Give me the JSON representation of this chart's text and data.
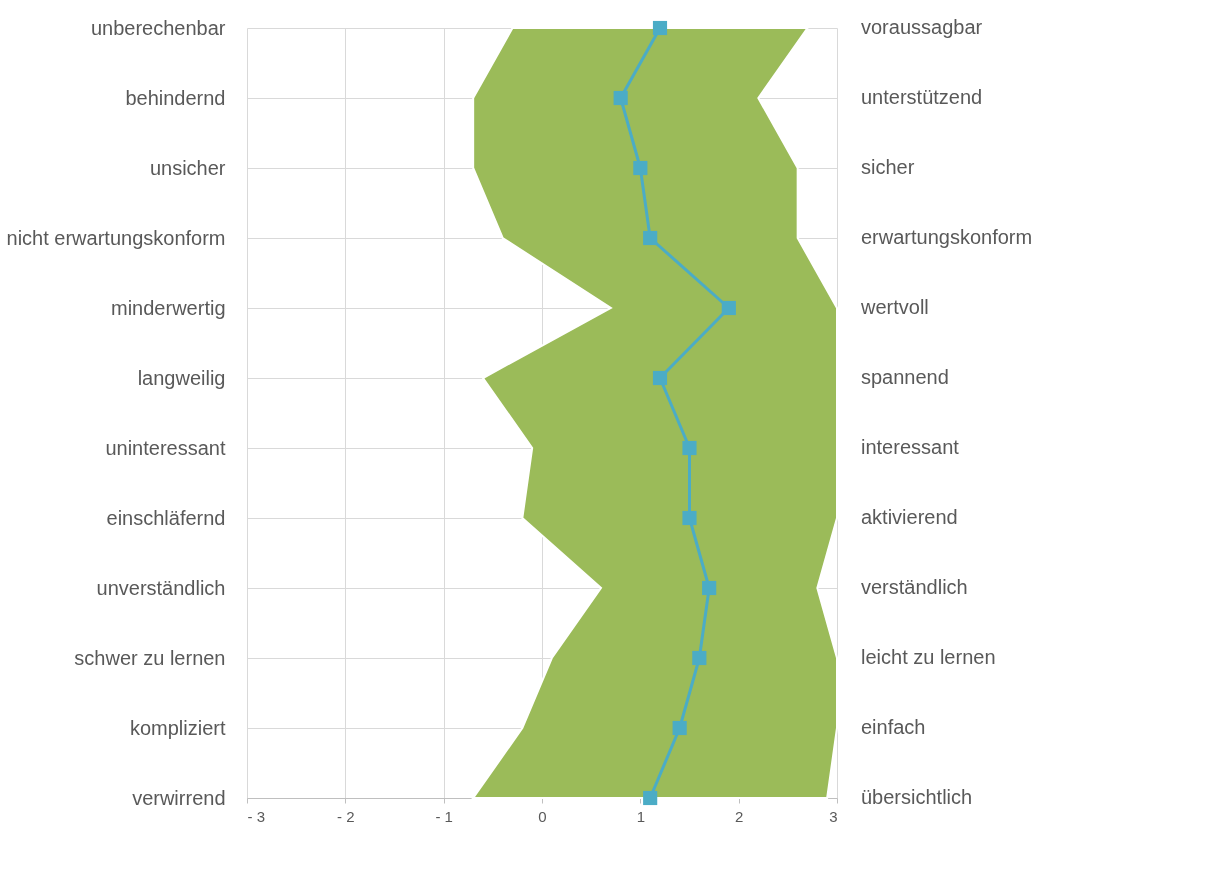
{
  "chart_data": {
    "type": "line",
    "orientation": "horizontal",
    "categories": [
      "unberechenbar",
      "behindernd",
      "unsicher",
      "nicht erwartungskonform",
      "minderwertig",
      "langweilig",
      "uninteressant",
      "einschläfernd",
      "unverständlich",
      "schwer zu lernen",
      "kompliziert",
      "verwirrend"
    ],
    "y2_categories": [
      "voraussagbar",
      "unterstützend",
      "sicher",
      "erwartungskonform",
      "wertvoll",
      "spannend",
      "interessant",
      "aktivierend",
      "verständlich",
      "leicht zu lernen",
      "einfach",
      "übersichtlich"
    ],
    "series": [
      {
        "color": "#4bacc6",
        "values": [
          1.2,
          0.8,
          1.0,
          1.1,
          1.9,
          1.2,
          1.5,
          1.5,
          1.7,
          1.6,
          1.4,
          1.1
        ],
        "lower": [
          -0.3,
          -0.7,
          -0.7,
          -0.4,
          0.7,
          -0.6,
          -0.1,
          -0.2,
          0.6,
          0.1,
          -0.2,
          -0.7
        ],
        "upper": [
          2.7,
          2.2,
          2.6,
          2.6,
          3,
          3,
          3,
          3,
          2.8,
          3,
          3,
          2.9
        ]
      }
    ],
    "xlim": [
      -3,
      3
    ],
    "xticks": [
      {
        "value": -3,
        "label": "- 3"
      },
      {
        "value": -2,
        "label": "- 2"
      },
      {
        "value": -1,
        "label": "- 1"
      },
      0,
      1,
      2,
      3
    ],
    "grid": true,
    "marker": "square",
    "line_style": "solid"
  }
}
